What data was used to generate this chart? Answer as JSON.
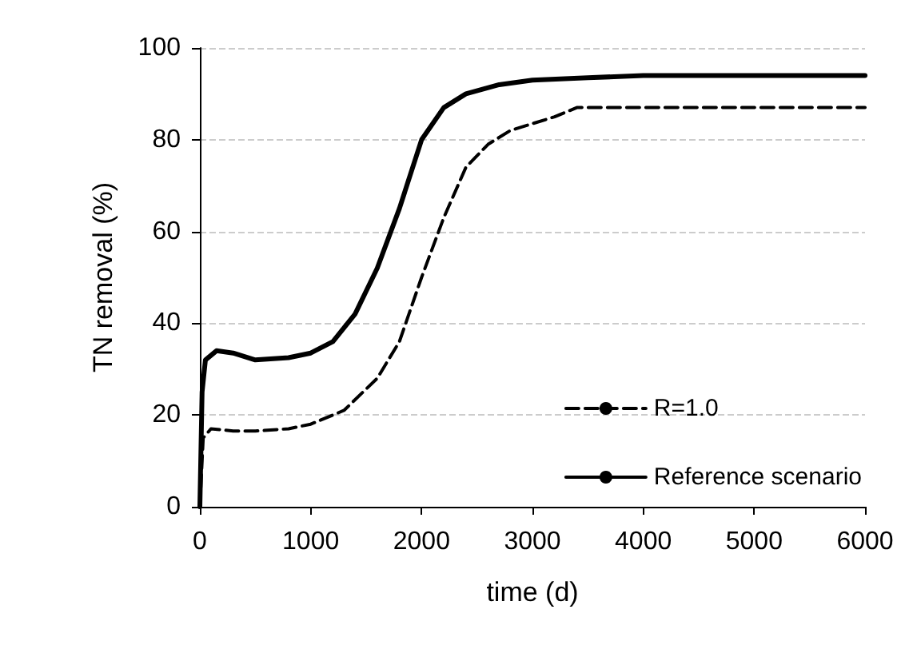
{
  "chart_data": {
    "type": "line",
    "xlabel": "time (d)",
    "ylabel": "TN removal (%)",
    "xlim": [
      0,
      6000
    ],
    "xticks": [
      0,
      1000,
      2000,
      3000,
      4000,
      5000,
      6000
    ],
    "ylim": [
      0,
      100
    ],
    "yticks": [
      0,
      20,
      40,
      60,
      80,
      100
    ],
    "grid": "y",
    "legend": "right",
    "marker": "none",
    "series": [
      {
        "name": "R=1.0",
        "color": "#000000",
        "line_style": "dashed",
        "x": [
          0,
          30,
          100,
          300,
          500,
          800,
          1000,
          1300,
          1600,
          1800,
          2000,
          2200,
          2400,
          2600,
          2800,
          3000,
          3200,
          3400,
          4000,
          5000,
          6000
        ],
        "values": [
          0,
          15,
          17,
          16.5,
          16.5,
          17,
          18,
          21,
          28,
          36,
          50,
          63,
          74,
          79,
          82,
          83.5,
          85,
          87,
          87,
          87,
          87
        ]
      },
      {
        "name": "Reference scenario",
        "color": "#000000",
        "line_style": "solid",
        "x": [
          0,
          20,
          50,
          150,
          300,
          500,
          800,
          1000,
          1200,
          1400,
          1600,
          1800,
          2000,
          2200,
          2400,
          2700,
          3000,
          3500,
          4000,
          5000,
          6000
        ],
        "values": [
          0,
          25,
          32,
          34,
          33.5,
          32,
          32.5,
          33.5,
          36,
          42,
          52,
          65,
          80,
          87,
          90,
          92,
          93,
          93.5,
          94,
          94,
          94
        ]
      }
    ]
  }
}
